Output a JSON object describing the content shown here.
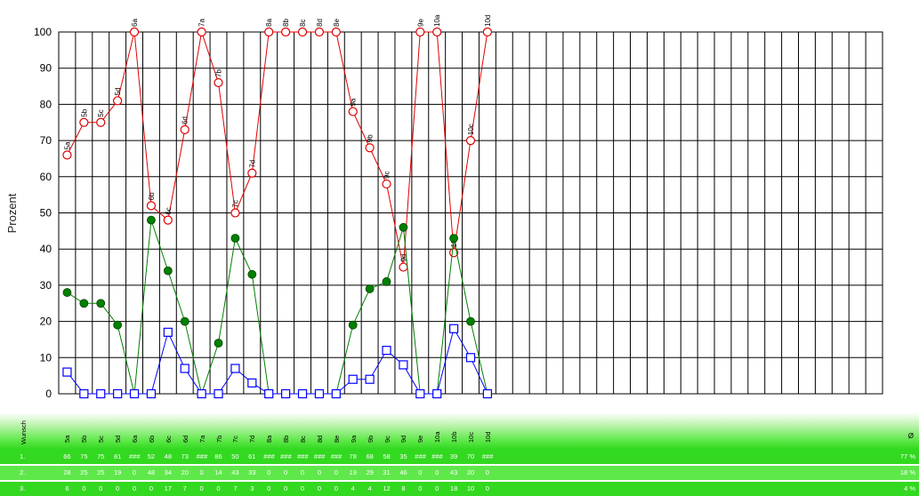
{
  "chart_data": {
    "type": "line",
    "ylabel": "Prozent",
    "ylim": [
      0,
      100
    ],
    "yticks": [
      0,
      10,
      20,
      30,
      40,
      50,
      60,
      70,
      80,
      90,
      100
    ],
    "grid": true,
    "x_slots": 49,
    "categories": [
      "5a",
      "5b",
      "5c",
      "5d",
      "6a",
      "6b",
      "6c",
      "6d",
      "7a",
      "7b",
      "7c",
      "7d",
      "8a",
      "8b",
      "8c",
      "8d",
      "8e",
      "9a",
      "9b",
      "9c",
      "9d",
      "9e",
      "10a",
      "10b",
      "10c",
      "10d"
    ],
    "series": [
      {
        "values": [
          66,
          75,
          75,
          81,
          100,
          52,
          48,
          73,
          100,
          86,
          50,
          61,
          100,
          100,
          100,
          100,
          100,
          78,
          68,
          58,
          35,
          100,
          100,
          39,
          70,
          100
        ],
        "color": "#e00000",
        "marker": "open-circle",
        "point_labels": true
      },
      {
        "values": [
          28,
          25,
          25,
          19,
          0,
          48,
          34,
          20,
          0,
          14,
          43,
          33,
          0,
          0,
          0,
          0,
          0,
          19,
          29,
          31,
          46,
          0,
          0,
          43,
          20,
          0
        ],
        "color": "#008000",
        "marker": "filled-circle"
      },
      {
        "values": [
          6,
          0,
          0,
          0,
          0,
          0,
          17,
          7,
          0,
          0,
          7,
          3,
          0,
          0,
          0,
          0,
          0,
          4,
          4,
          12,
          8,
          0,
          0,
          18,
          10,
          0
        ],
        "color": "#0000ff",
        "marker": "open-square"
      }
    ]
  },
  "table": {
    "header_label": "Wunsch",
    "avg_header": "Ø",
    "columns": [
      "5a",
      "5b",
      "5c",
      "5d",
      "6a",
      "6b",
      "6c",
      "6d",
      "7a",
      "7b",
      "7c",
      "7d",
      "8a",
      "8b",
      "8c",
      "8d",
      "8e",
      "9a",
      "9b",
      "9c",
      "9d",
      "9e",
      "10a",
      "10b",
      "10c",
      "10d"
    ],
    "rows": [
      {
        "label": "1.",
        "cells": [
          "66",
          "75",
          "75",
          "81",
          "###",
          "52",
          "48",
          "73",
          "###",
          "86",
          "50",
          "61",
          "###",
          "###",
          "###",
          "###",
          "###",
          "78",
          "68",
          "58",
          "35",
          "###",
          "###",
          "39",
          "70",
          "###"
        ],
        "avg": "77 %"
      },
      {
        "label": "2.",
        "cells": [
          "28",
          "25",
          "25",
          "19",
          "0",
          "48",
          "34",
          "20",
          "0",
          "14",
          "43",
          "33",
          "0",
          "0",
          "0",
          "0",
          "0",
          "19",
          "29",
          "31",
          "46",
          "0",
          "0",
          "43",
          "20",
          "0"
        ],
        "avg": "18 %"
      },
      {
        "label": "3.",
        "cells": [
          "6",
          "0",
          "0",
          "0",
          "0",
          "0",
          "17",
          "7",
          "0",
          "0",
          "7",
          "3",
          "0",
          "0",
          "0",
          "0",
          "0",
          "4",
          "4",
          "12",
          "8",
          "0",
          "0",
          "18",
          "10",
          "0"
        ],
        "avg": "4 %"
      }
    ]
  }
}
